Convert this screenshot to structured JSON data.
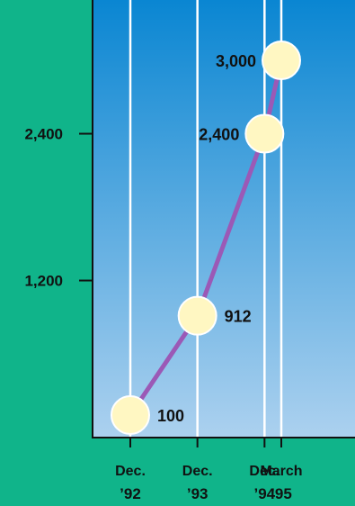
{
  "chart_data": {
    "type": "line",
    "title": "",
    "xlabel": "",
    "ylabel": "",
    "x": [
      {
        "line1": "Dec.",
        "line2": "’92",
        "t": 0
      },
      {
        "line1": "Dec.",
        "line2": "’93",
        "t": 12
      },
      {
        "line1": "Dec.",
        "line2": "’94",
        "t": 24
      },
      {
        "line1": "March",
        "line2": "’95",
        "t": 27
      }
    ],
    "values": [
      100,
      912,
      2400,
      3000
    ],
    "data_labels": [
      "100",
      "912",
      "2,400",
      "3,000"
    ],
    "y_ticks": [
      {
        "value": 1200,
        "label": "1,200"
      },
      {
        "value": 2400,
        "label": "2,400"
      }
    ],
    "ylim": [
      -100,
      3400
    ],
    "grid": "vertical lines at each data point",
    "colors": {
      "page_background": "#10b48a",
      "plot_top": "#0a86d2",
      "plot_bottom": "#acd1ef",
      "line": "#9b59b6",
      "marker_fill": "#fff7c2",
      "marker_stroke": "#ffffff",
      "gridline": "#ffffff",
      "axis": "#111111"
    }
  }
}
